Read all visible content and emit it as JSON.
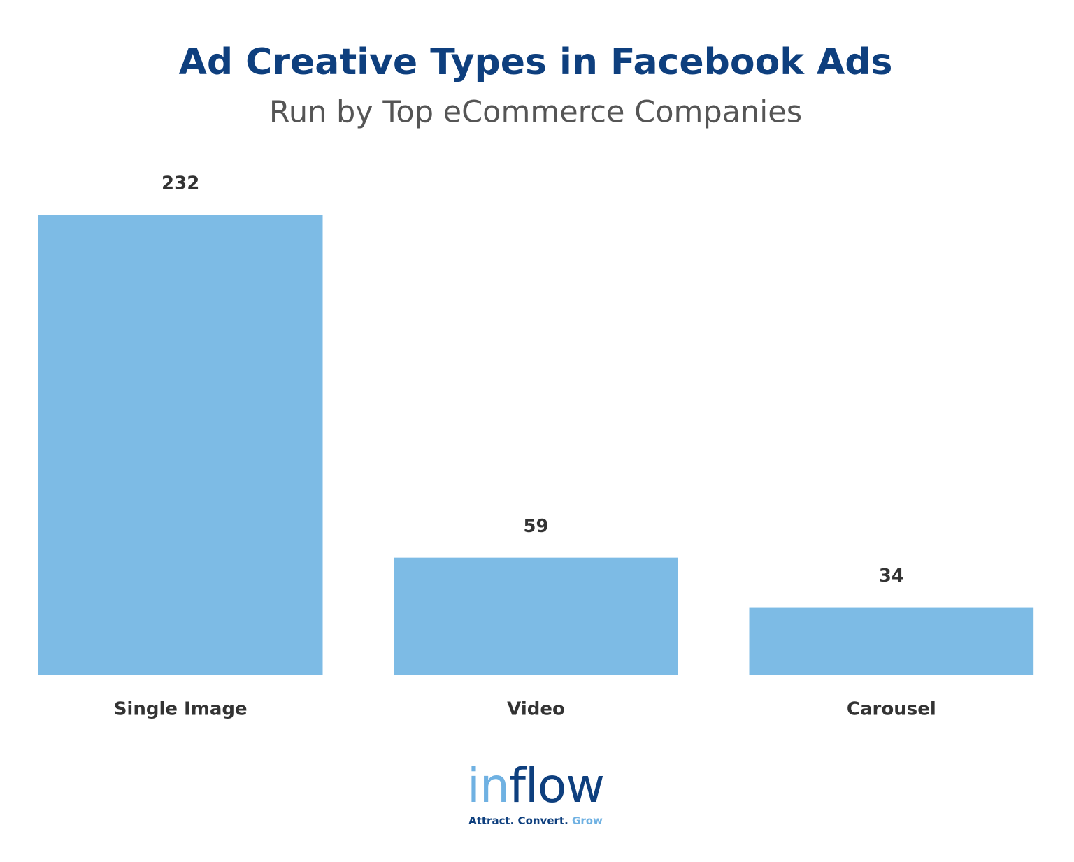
{
  "chart_data": {
    "type": "bar",
    "title": "Ad Creative Types in Facebook Ads",
    "subtitle": "Run by Top eCommerce Companies",
    "categories": [
      "Single Image",
      "Video",
      "Carousel"
    ],
    "values": [
      232,
      59,
      34
    ],
    "color": "#7dbbe5",
    "ylim": [
      0,
      232
    ],
    "grid": false
  },
  "logo": {
    "wordmark": [
      "in",
      "flow"
    ],
    "tagline": [
      "Attract. Convert.",
      "Grow"
    ]
  }
}
